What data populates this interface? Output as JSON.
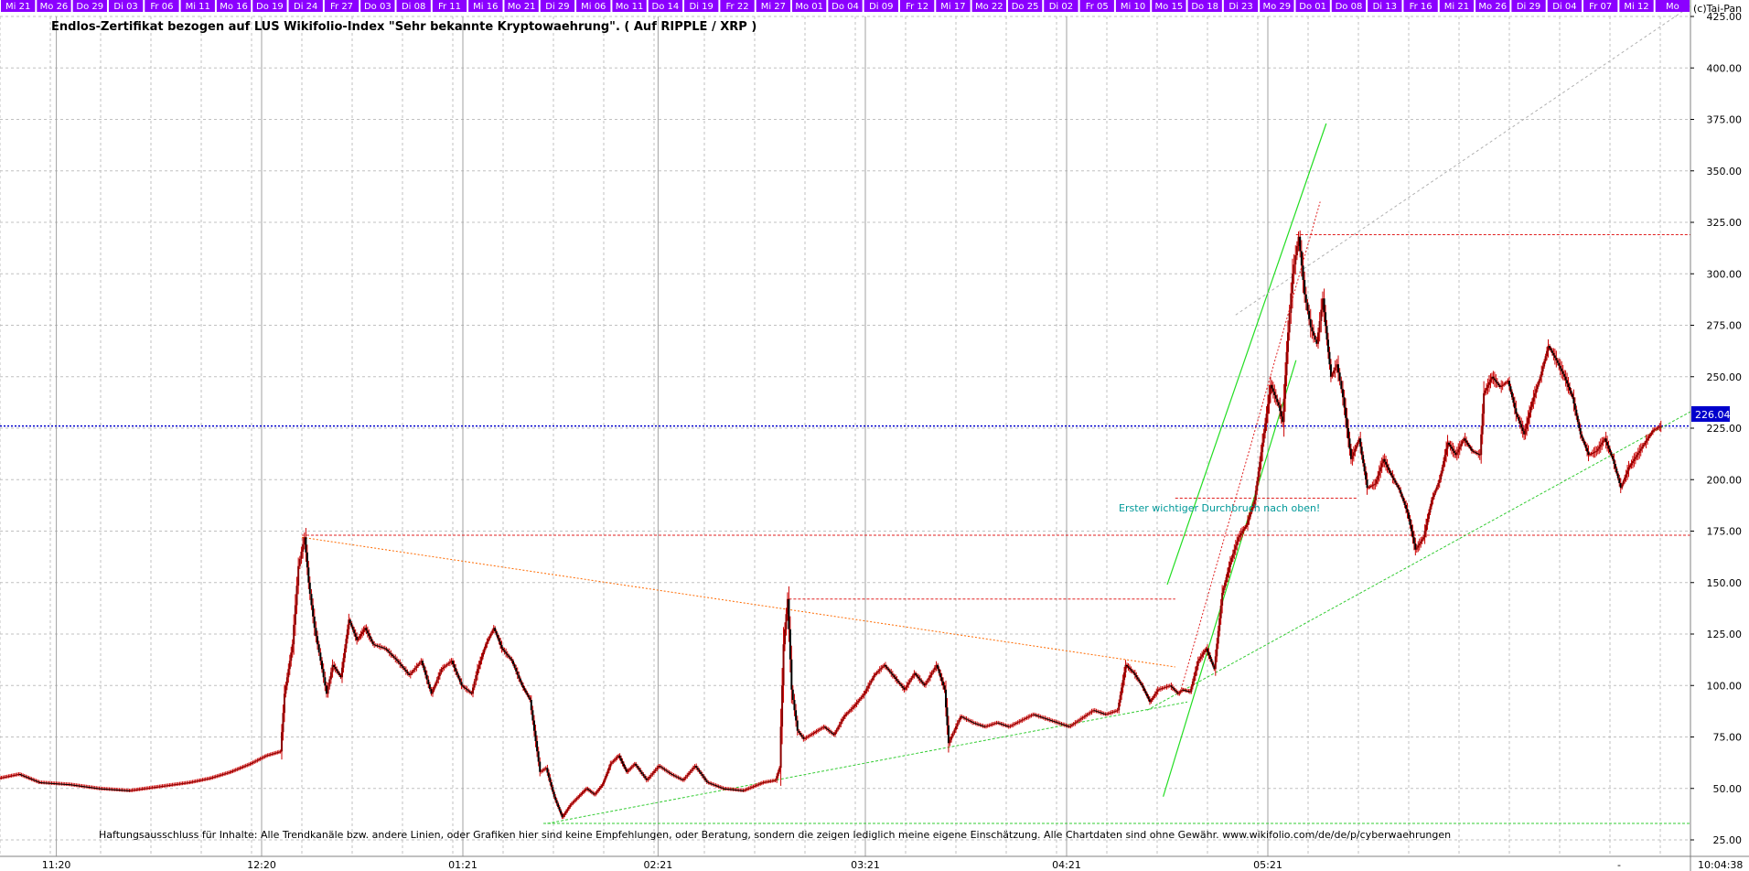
{
  "chart_data": {
    "type": "line",
    "title": "Endlos-Zertifikat bezogen auf LUS Wikifolio-Index \"Sehr bekannte Kryptowaehrung\". ( Auf RIPPLE / XRP )",
    "copyright": "(c)Tai-Pan",
    "disclaimer": "Haftungsausschluss für Inhalte: Alle Trendkanäle bzw. andere Linien, oder Grafiken hier sind keine Empfehlungen, oder Beratung, sondern die zeigen lediglich meine eigene Einschätzung. Alle Chartdaten sind ohne Gewähr.  www.wikifolio.com/de/de/p/cyberwaehrungen",
    "annotation": "Erster wichtiger Durchbruch nach oben!",
    "current_value_label": "226.04",
    "current_value": 226.04,
    "time_label": "10:04:38",
    "dash_label": "-",
    "ylim": [
      17,
      433
    ],
    "y_ticks": [
      "25.00",
      "50.00",
      "75.00",
      "100.00",
      "125.00",
      "150.00",
      "175.00",
      "200.00",
      "225.00",
      "250.00",
      "275.00",
      "300.00",
      "325.00",
      "350.00",
      "375.00",
      "400.00",
      "425.00"
    ],
    "x_months": [
      {
        "label": "11:20",
        "x": 0.28
      },
      {
        "label": "12:20",
        "x": 1.3
      },
      {
        "label": "01:21",
        "x": 2.3
      },
      {
        "label": "02:21",
        "x": 3.27
      },
      {
        "label": "03:21",
        "x": 4.3
      },
      {
        "label": "04:21",
        "x": 5.3
      },
      {
        "label": "05:21",
        "x": 6.3
      }
    ],
    "x_units": "months since 2020-11-01",
    "day_labels": [
      "Mi 21",
      "Mo 26",
      "Do 29",
      "Di 03",
      "Fr 06",
      "Mi 11",
      "Mo 16",
      "Do 19",
      "Di 24",
      "Fr 27",
      "Do 03",
      "Di 08",
      "Fr 11",
      "Mi 16",
      "Mo 21",
      "Di 29",
      "Mi 06",
      "Mo 11",
      "Do 14",
      "Di 19",
      "Fr 22",
      "Mi 27",
      "Mo 01",
      "Do 04",
      "Di 09",
      "Fr 12",
      "Mi 17",
      "Mo 22",
      "Do 25",
      "Di 02",
      "Fr 05",
      "Mi 10",
      "Mo 15",
      "Do 18",
      "Di 23",
      "Mo 29",
      "Do 01",
      "Do 08",
      "Di 13",
      "Fr 16",
      "Mi 21",
      "Mo 26",
      "Di 29",
      "Di 04",
      "Fr 07",
      "Mi 12",
      "Mo"
    ],
    "colors": {
      "day_bar_bg": "#8b00ff",
      "day_bar_text": "#ffffff",
      "price_up": "#8b0000",
      "price_down": "#000000",
      "price_wick": "#cc0000",
      "grid": "#c0c0c0",
      "current_line": "#0000cc",
      "support_line": "#33cc33",
      "resistance_line": "#e02020",
      "trend_orange": "#ff6a00",
      "channel_green": "#22dd22",
      "annotation": "#009999"
    },
    "series": [
      {
        "points": [
          [
            0.0,
            55
          ],
          [
            0.1,
            57
          ],
          [
            0.2,
            53
          ],
          [
            0.35,
            52
          ],
          [
            0.5,
            50
          ],
          [
            0.65,
            49
          ],
          [
            0.8,
            51
          ],
          [
            0.95,
            53
          ],
          [
            1.05,
            55
          ],
          [
            1.15,
            58
          ],
          [
            1.25,
            62
          ],
          [
            1.33,
            66
          ],
          [
            1.4,
            68
          ],
          [
            1.42,
            96
          ],
          [
            1.46,
            120
          ],
          [
            1.49,
            158
          ],
          [
            1.52,
            172
          ],
          [
            1.54,
            150
          ],
          [
            1.57,
            128
          ],
          [
            1.6,
            112
          ],
          [
            1.63,
            96
          ],
          [
            1.66,
            110
          ],
          [
            1.7,
            104
          ],
          [
            1.74,
            132
          ],
          [
            1.78,
            122
          ],
          [
            1.82,
            128
          ],
          [
            1.86,
            120
          ],
          [
            1.92,
            118
          ],
          [
            1.98,
            112
          ],
          [
            2.04,
            105
          ],
          [
            2.1,
            112
          ],
          [
            2.15,
            96
          ],
          [
            2.2,
            108
          ],
          [
            2.25,
            112
          ],
          [
            2.3,
            100
          ],
          [
            2.35,
            96
          ],
          [
            2.38,
            108
          ],
          [
            2.42,
            120
          ],
          [
            2.46,
            128
          ],
          [
            2.5,
            118
          ],
          [
            2.55,
            112
          ],
          [
            2.6,
            100
          ],
          [
            2.64,
            93
          ],
          [
            2.69,
            58
          ],
          [
            2.72,
            60
          ],
          [
            2.76,
            46
          ],
          [
            2.8,
            36
          ],
          [
            2.84,
            42
          ],
          [
            2.88,
            46
          ],
          [
            2.92,
            50
          ],
          [
            2.96,
            47
          ],
          [
            3.0,
            52
          ],
          [
            3.04,
            62
          ],
          [
            3.08,
            66
          ],
          [
            3.12,
            58
          ],
          [
            3.16,
            62
          ],
          [
            3.22,
            54
          ],
          [
            3.28,
            61
          ],
          [
            3.34,
            57
          ],
          [
            3.4,
            54
          ],
          [
            3.46,
            61
          ],
          [
            3.52,
            53
          ],
          [
            3.6,
            50
          ],
          [
            3.7,
            49
          ],
          [
            3.8,
            53
          ],
          [
            3.86,
            54
          ],
          [
            3.88,
            60
          ],
          [
            3.9,
            120
          ],
          [
            3.92,
            142
          ],
          [
            3.94,
            98
          ],
          [
            3.97,
            78
          ],
          [
            4.0,
            74
          ],
          [
            4.05,
            77
          ],
          [
            4.1,
            80
          ],
          [
            4.15,
            76
          ],
          [
            4.2,
            85
          ],
          [
            4.25,
            90
          ],
          [
            4.3,
            96
          ],
          [
            4.35,
            105
          ],
          [
            4.4,
            110
          ],
          [
            4.45,
            104
          ],
          [
            4.5,
            98
          ],
          [
            4.55,
            106
          ],
          [
            4.6,
            100
          ],
          [
            4.66,
            110
          ],
          [
            4.7,
            98
          ],
          [
            4.72,
            72
          ],
          [
            4.78,
            85
          ],
          [
            4.84,
            82
          ],
          [
            4.9,
            80
          ],
          [
            4.96,
            82
          ],
          [
            5.02,
            80
          ],
          [
            5.08,
            83
          ],
          [
            5.14,
            86
          ],
          [
            5.2,
            84
          ],
          [
            5.26,
            82
          ],
          [
            5.32,
            80
          ],
          [
            5.38,
            84
          ],
          [
            5.44,
            88
          ],
          [
            5.5,
            86
          ],
          [
            5.56,
            88
          ],
          [
            5.6,
            110
          ],
          [
            5.64,
            106
          ],
          [
            5.68,
            100
          ],
          [
            5.72,
            92
          ],
          [
            5.76,
            98
          ],
          [
            5.82,
            100
          ],
          [
            5.86,
            96
          ],
          [
            5.88,
            98
          ],
          [
            5.92,
            97
          ],
          [
            5.96,
            112
          ],
          [
            6.0,
            118
          ],
          [
            6.04,
            108
          ],
          [
            6.08,
            145
          ],
          [
            6.12,
            160
          ],
          [
            6.16,
            172
          ],
          [
            6.2,
            178
          ],
          [
            6.24,
            190
          ],
          [
            6.28,
            218
          ],
          [
            6.32,
            246
          ],
          [
            6.36,
            236
          ],
          [
            6.38,
            228
          ],
          [
            6.4,
            262
          ],
          [
            6.43,
            300
          ],
          [
            6.46,
            318
          ],
          [
            6.49,
            290
          ],
          [
            6.52,
            274
          ],
          [
            6.55,
            266
          ],
          [
            6.58,
            288
          ],
          [
            6.6,
            268
          ],
          [
            6.62,
            250
          ],
          [
            6.65,
            256
          ],
          [
            6.68,
            240
          ],
          [
            6.72,
            210
          ],
          [
            6.76,
            220
          ],
          [
            6.8,
            196
          ],
          [
            6.84,
            198
          ],
          [
            6.88,
            210
          ],
          [
            6.92,
            202
          ],
          [
            6.96,
            195
          ],
          [
            7.0,
            184
          ],
          [
            7.04,
            166
          ],
          [
            7.08,
            172
          ],
          [
            7.12,
            190
          ],
          [
            7.16,
            200
          ],
          [
            7.2,
            218
          ],
          [
            7.24,
            212
          ],
          [
            7.28,
            220
          ],
          [
            7.32,
            214
          ],
          [
            7.36,
            212
          ],
          [
            7.38,
            242
          ],
          [
            7.42,
            250
          ],
          [
            7.46,
            245
          ],
          [
            7.5,
            248
          ],
          [
            7.54,
            232
          ],
          [
            7.58,
            222
          ],
          [
            7.62,
            238
          ],
          [
            7.66,
            250
          ],
          [
            7.7,
            265
          ],
          [
            7.74,
            258
          ],
          [
            7.78,
            250
          ],
          [
            7.82,
            240
          ],
          [
            7.86,
            222
          ],
          [
            7.9,
            212
          ],
          [
            7.94,
            214
          ],
          [
            7.98,
            220
          ],
          [
            8.02,
            210
          ],
          [
            8.06,
            196
          ],
          [
            8.1,
            206
          ],
          [
            8.14,
            212
          ],
          [
            8.18,
            218
          ],
          [
            8.22,
            224
          ],
          [
            8.26,
            226.04
          ]
        ]
      }
    ],
    "overlays": {
      "support_base_y": 33,
      "resistance_levels": [
        {
          "y": 173,
          "x0": 1.5,
          "x1": 8.4
        },
        {
          "y": 142,
          "x0": 3.92,
          "x1": 5.84
        },
        {
          "y": 191,
          "x0": 5.84,
          "x1": 6.74
        },
        {
          "y": 319,
          "x0": 6.44,
          "x1": 8.4
        }
      ],
      "trend_lines": [
        {
          "kind": "orange",
          "from": [
            1.5,
            172
          ],
          "to": [
            5.84,
            109
          ]
        },
        {
          "kind": "support",
          "from": [
            2.72,
            33
          ],
          "to": [
            5.9,
            92
          ]
        },
        {
          "kind": "support",
          "from": [
            5.7,
            88
          ],
          "to": [
            8.4,
            233
          ]
        },
        {
          "kind": "channel",
          "from": [
            5.78,
            46
          ],
          "to": [
            6.44,
            258
          ]
        },
        {
          "kind": "channel",
          "from": [
            5.8,
            149
          ],
          "to": [
            6.59,
            373
          ]
        },
        {
          "kind": "red_dotted",
          "from": [
            5.86,
            95
          ],
          "to": [
            6.56,
            335
          ]
        },
        {
          "kind": "grey_dotted",
          "from": [
            6.14,
            280
          ],
          "to": [
            8.4,
            430
          ]
        }
      ]
    }
  }
}
